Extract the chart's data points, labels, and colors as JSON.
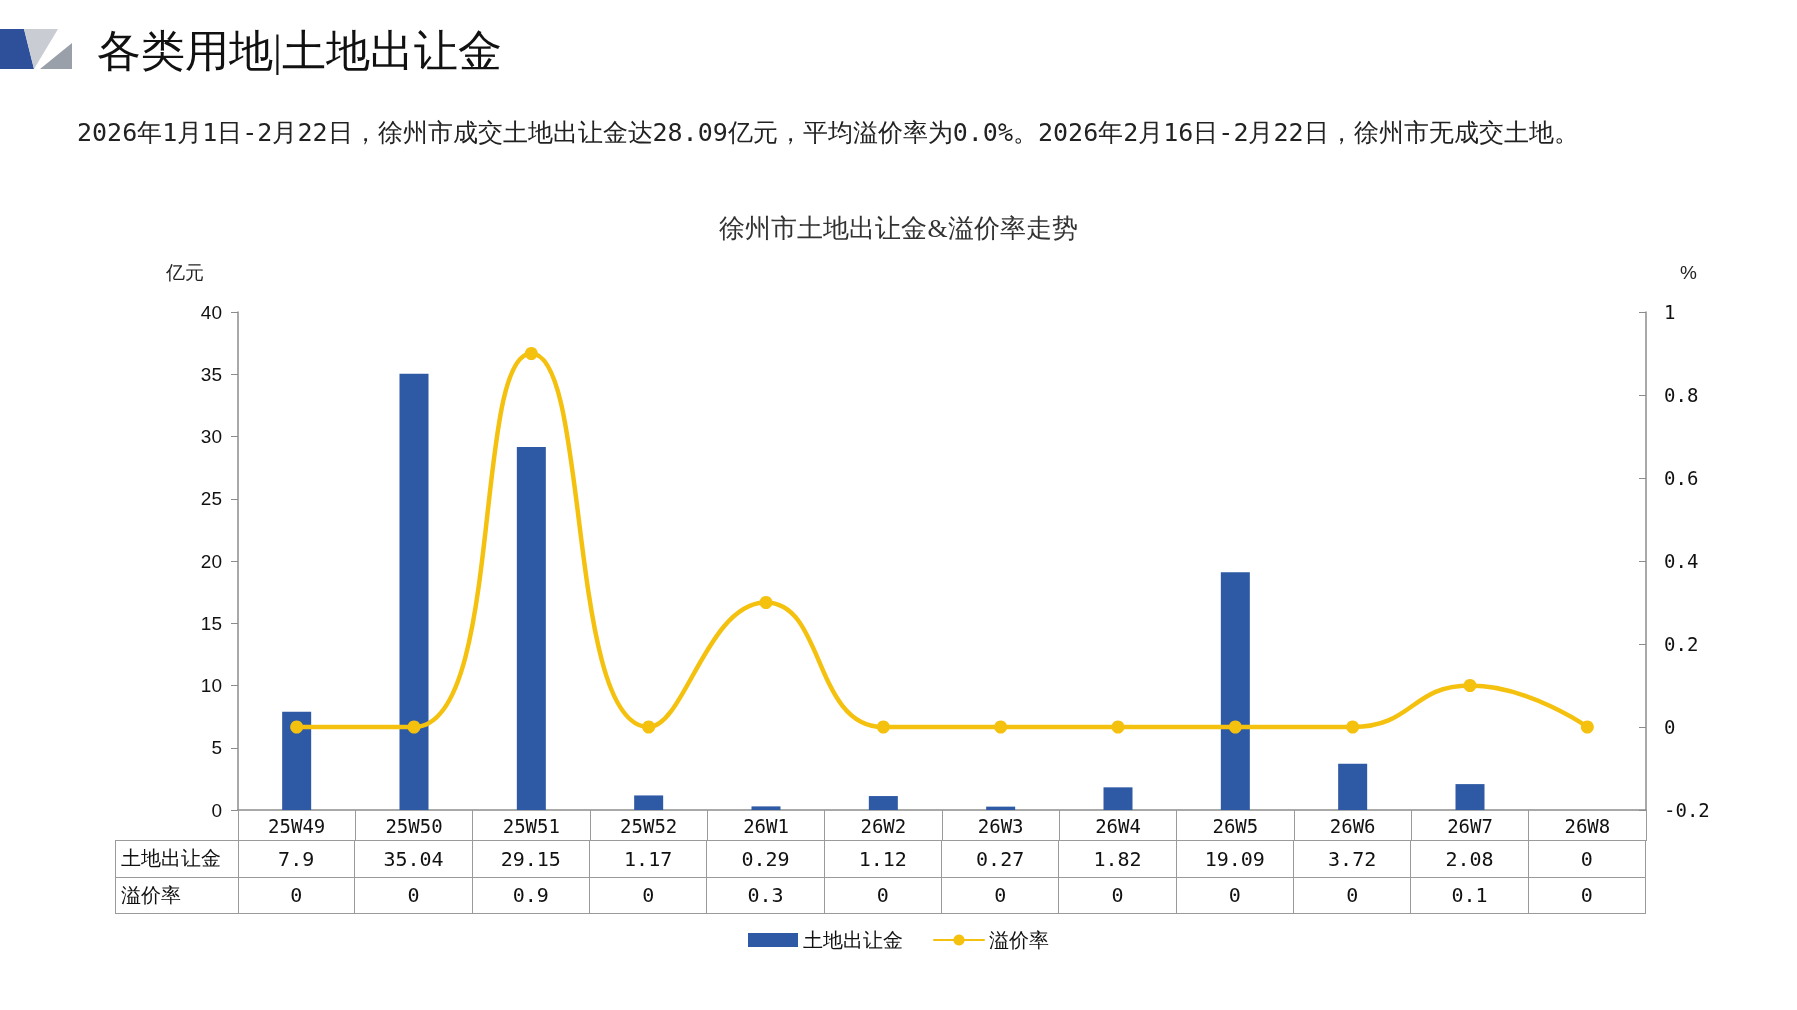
{
  "chart_data": {
    "type": "bar",
    "title": "各类用地|土地出让金",
    "subtitle": "2026年1月1日-2月22日，徐州市成交土地出让金达28.09亿元，平均溢价率为0.0%。2026年2月16日-2月22日，徐州市无成交土地。",
    "annotations": [
      "徐州市土地出让金&溢价率走势"
    ],
    "ylabel": "亿元",
    "y2label": "%",
    "categories": [
      "25W49",
      "25W50",
      "25W51",
      "25W52",
      "26W1",
      "26W2",
      "26W3",
      "26W4",
      "26W5",
      "26W6",
      "26W7",
      "26W8"
    ],
    "series": [
      {
        "name": "土地出让金",
        "color": "#2e59a5",
        "values": [
          7.9,
          35.04,
          29.15,
          1.17,
          0.29,
          1.12,
          0.27,
          1.82,
          19.09,
          3.72,
          2.08,
          0
        ]
      },
      {
        "name": "溢价率",
        "type": "line",
        "axis": "y2",
        "color": "#f5c10f",
        "values": [
          0,
          0,
          0.9,
          0,
          0.3,
          0,
          0,
          0,
          0,
          0,
          0.1,
          0
        ]
      }
    ],
    "ylim": [
      0,
      40
    ],
    "yticks": [
      0,
      5,
      10,
      15,
      20,
      25,
      30,
      35,
      40
    ],
    "y2lim": [
      -0.2,
      1
    ],
    "y2ticks": [
      -0.2,
      0,
      0.2,
      0.4,
      0.6,
      0.8,
      1
    ],
    "grid": false,
    "legend": "bottom",
    "marker": "circle",
    "line_style": "solid",
    "data_labels": true
  }
}
